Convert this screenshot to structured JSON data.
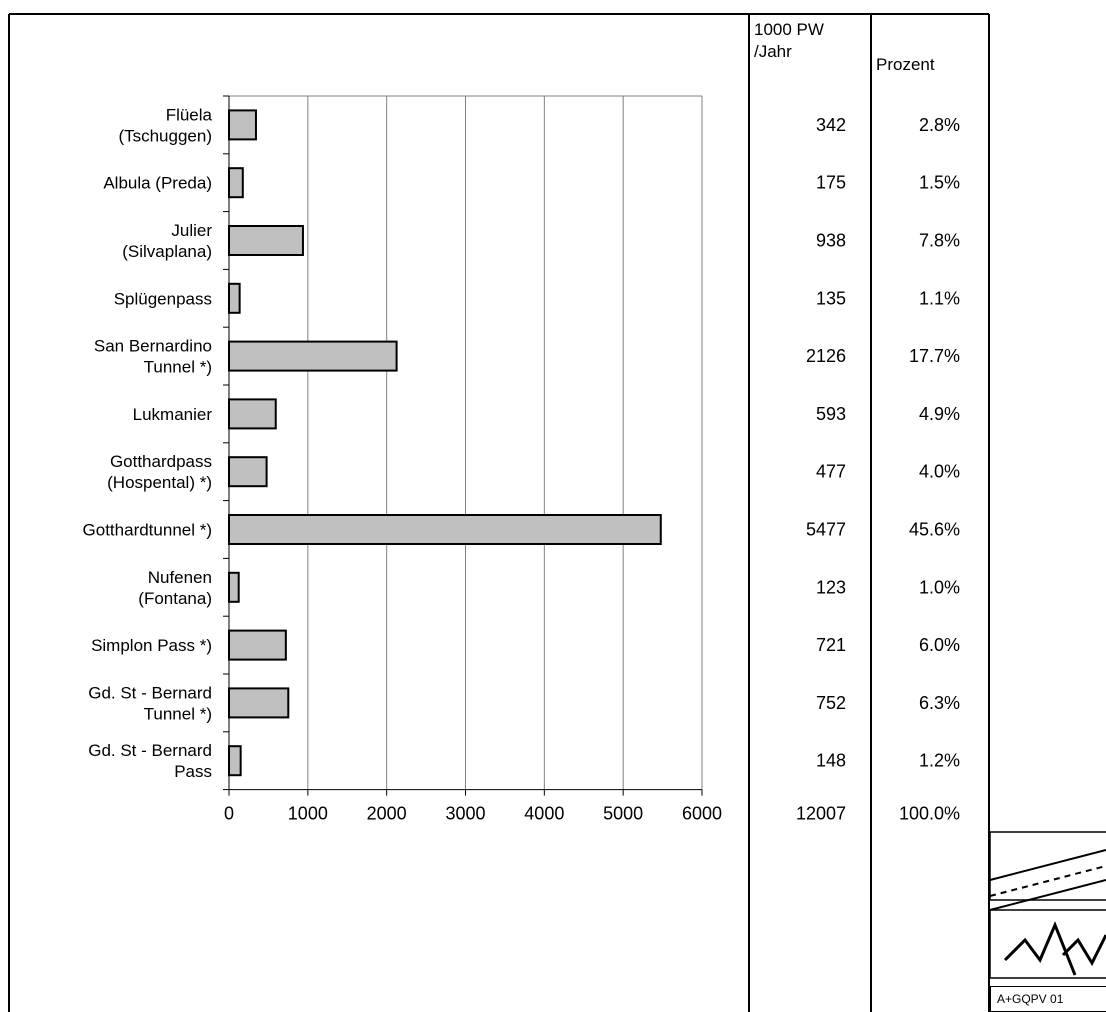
{
  "chart_data": {
    "type": "bar",
    "orientation": "horizontal",
    "categories": [
      [
        "Flüela",
        "(Tschuggen)"
      ],
      [
        "Albula (Preda)"
      ],
      [
        "Julier",
        "(Silvaplana)"
      ],
      [
        "Splügenpass"
      ],
      [
        "San Bernardino",
        "Tunnel *)"
      ],
      [
        "Lukmanier"
      ],
      [
        "Gotthardpass",
        "(Hospental) *)"
      ],
      [
        "Gotthardtunnel *)"
      ],
      [
        "Nufenen",
        "(Fontana)"
      ],
      [
        "Simplon Pass *)"
      ],
      [
        "Gd. St - Bernard",
        "Tunnel *)"
      ],
      [
        "Gd. St - Bernard",
        "Pass"
      ]
    ],
    "values": [
      342,
      175,
      938,
      135,
      2126,
      593,
      477,
      5477,
      123,
      721,
      752,
      148
    ],
    "xlim": [
      0,
      6000
    ],
    "xticks": [
      "0",
      "1000",
      "2000",
      "3000",
      "4000",
      "5000",
      "6000"
    ],
    "grid": "vertical",
    "bar_color": "#c0c0c0",
    "table": {
      "col1_header": [
        "1000 PW",
        "/Jahr"
      ],
      "col2_header": [
        "Prozent"
      ],
      "col1_values": [
        "342",
        "175",
        "938",
        "135",
        "2126",
        "593",
        "477",
        "5477",
        "123",
        "721",
        "752",
        "148"
      ],
      "col2_values": [
        "2.8%",
        "1.5%",
        "7.8%",
        "1.1%",
        "17.7%",
        "4.9%",
        "4.0%",
        "45.6%",
        "1.0%",
        "6.0%",
        "6.3%",
        "1.2%"
      ],
      "total_value": "12007",
      "total_percent": "100.0%"
    }
  },
  "logo": {
    "label": "A+GQPV 01",
    "road_icon": "road-lanes-icon",
    "mountain_icon": "mountain-icon"
  }
}
